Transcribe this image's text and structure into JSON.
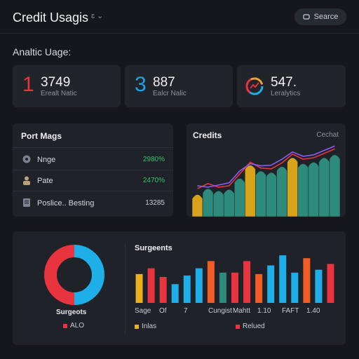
{
  "header": {
    "title": "Credit Usagis",
    "title_suffix": "ɛ ⌄",
    "search_label": "Searce"
  },
  "section_label": "Analtic Uage:",
  "stats": [
    {
      "num": "1",
      "num_color": "#e8343f",
      "value": "3749",
      "caption": "Erealt Natic"
    },
    {
      "num": "3",
      "num_color": "#1ea3e6",
      "value": "887",
      "caption": "Ealcr Nalic"
    },
    {
      "num": "",
      "num_color": "#f2a03c",
      "value": "547.",
      "caption": "Leralytics"
    }
  ],
  "left_panel": {
    "title": "Port Mags",
    "rows": [
      {
        "icon": "gear-icon",
        "label": "Nnge",
        "value": "2980%",
        "value_color": "#33c26b"
      },
      {
        "icon": "user-icon",
        "label": "Pate",
        "value": "2470%",
        "value_color": "#33c26b"
      },
      {
        "icon": "document-icon",
        "label": "Poslice.. Besting",
        "value": "13285",
        "value_color": "#c9ccd3"
      }
    ]
  },
  "credits_panel": {
    "title": "Credits",
    "link": "Cechat"
  },
  "bottom_panel": {
    "donut_caption": "Surgeots",
    "donut_legend": "ALO",
    "donut_legend_color": "#e8343f",
    "bar_title": "Surgeents",
    "x_labels": [
      "Sage",
      "Of",
      "7",
      "Cungist",
      "Mahtt",
      "1.10",
      "FAFT",
      "1.40"
    ],
    "legend": [
      {
        "label": "Inlas",
        "color": "#e9b21c"
      },
      {
        "label": "Relued",
        "color": "#e8343f"
      }
    ]
  },
  "chart_data": [
    {
      "type": "area",
      "title": "Credits",
      "bars": [
        {
          "value": 30,
          "color": "#d9a21b"
        },
        {
          "value": 38,
          "color": "#2e8a7b"
        },
        {
          "value": 35,
          "color": "#2e8a7b"
        },
        {
          "value": 37,
          "color": "#2e8a7b"
        },
        {
          "value": 52,
          "color": "#2e8a7b"
        },
        {
          "value": 70,
          "color": "#d9a21b"
        },
        {
          "value": 62,
          "color": "#2e8a7b"
        },
        {
          "value": 60,
          "color": "#2e8a7b"
        },
        {
          "value": 68,
          "color": "#2e8a7b"
        },
        {
          "value": 80,
          "color": "#d9a21b"
        },
        {
          "value": 72,
          "color": "#2e8a7b"
        },
        {
          "value": 74,
          "color": "#2e8a7b"
        },
        {
          "value": 80,
          "color": "#2e8a7b"
        },
        {
          "value": 84,
          "color": "#2e8a7b"
        }
      ],
      "lines": [
        {
          "color": "#e8343f",
          "values": [
            38,
            45,
            40,
            42,
            58,
            74,
            66,
            65,
            73,
            85,
            78,
            80,
            86,
            92
          ]
        },
        {
          "color": "#8b5cf6",
          "values": [
            42,
            40,
            43,
            46,
            62,
            72,
            69,
            70,
            78,
            88,
            82,
            84,
            90,
            96
          ]
        }
      ],
      "ylim": [
        0,
        100
      ]
    },
    {
      "type": "pie",
      "title": "Surgeots",
      "slices": [
        {
          "value": 50,
          "color": "#1eaee8"
        },
        {
          "value": 50,
          "color": "#e8343f"
        }
      ]
    },
    {
      "type": "bar",
      "title": "Surgeents",
      "values": [
        40,
        48,
        36,
        26,
        38,
        48,
        58,
        42,
        42,
        58,
        40,
        52,
        66,
        42,
        62,
        46,
        54
      ],
      "colors": [
        "#e9b21c",
        "#e8343f",
        "#e8343f",
        "#1eaee8",
        "#1eaee8",
        "#1eaee8",
        "#f25c27",
        "#2e8a7b",
        "#e8343f",
        "#e8343f",
        "#f25c27",
        "#1eaee8",
        "#1eaee8",
        "#1eaee8",
        "#f25c27",
        "#1eaee8",
        "#e8343f"
      ],
      "ylim": [
        0,
        70
      ]
    }
  ]
}
